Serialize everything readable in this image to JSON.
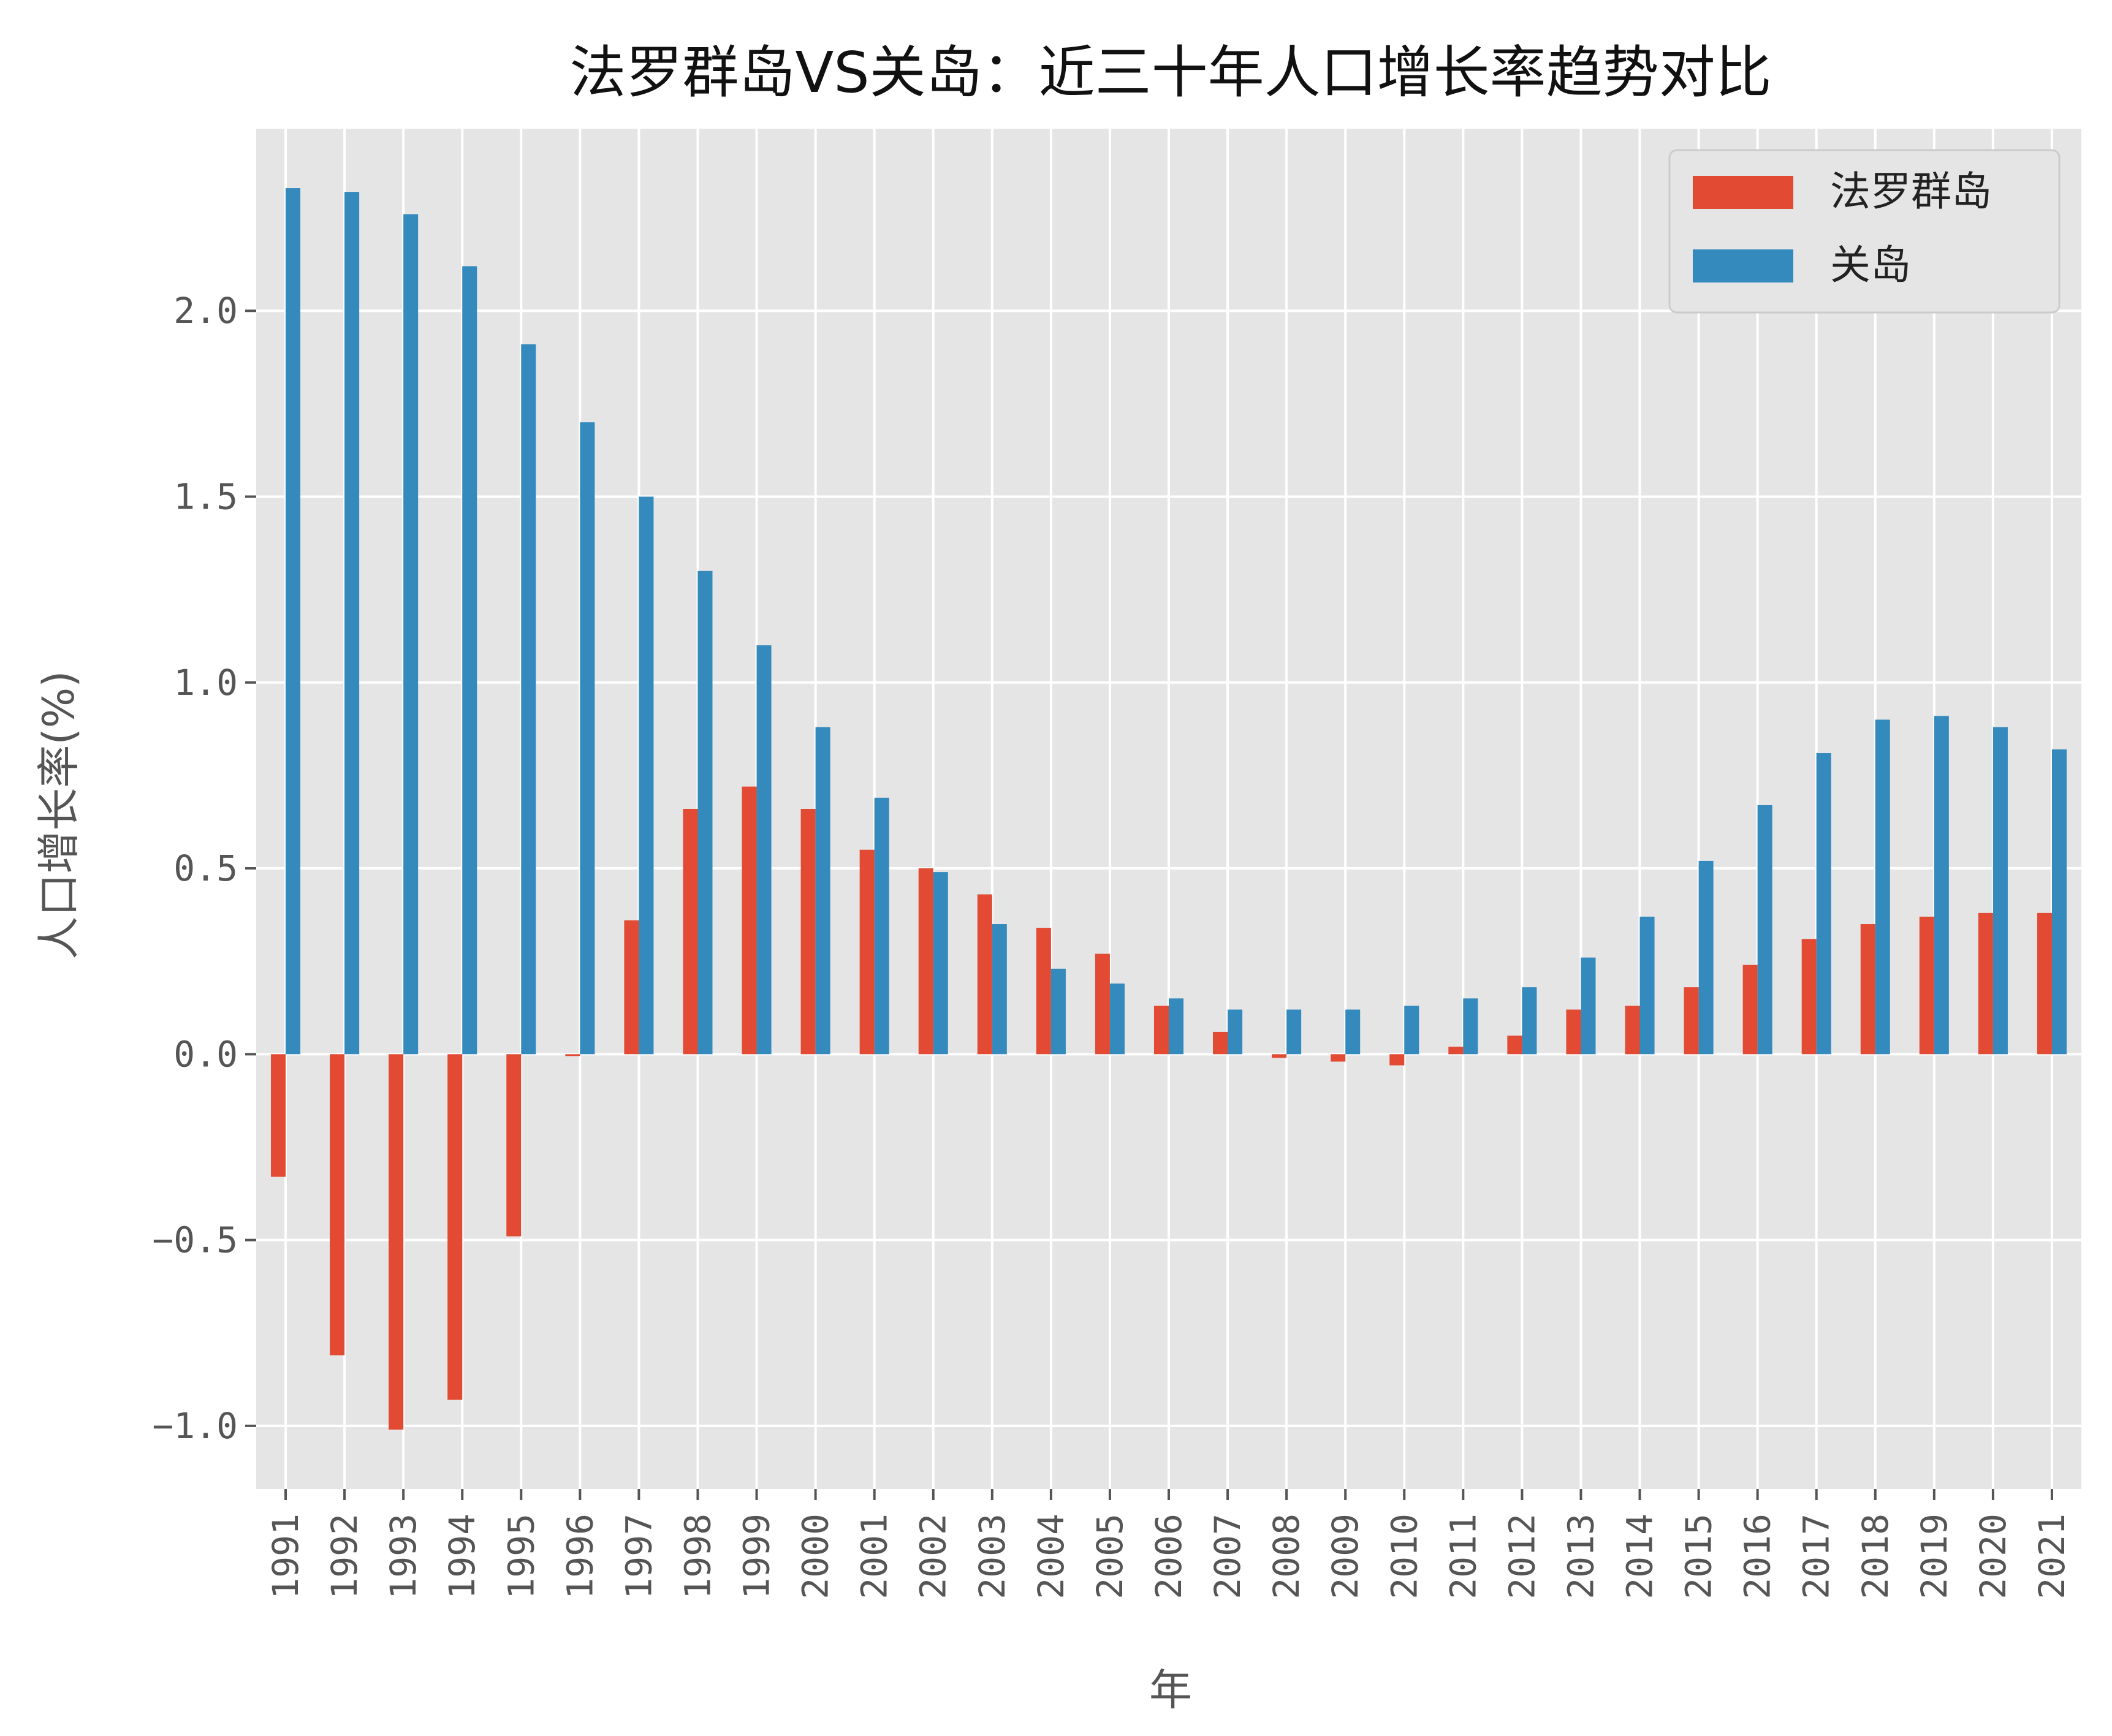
{
  "chart_data": {
    "type": "bar",
    "title": "法罗群岛VS关岛：近三十年人口增长率趋势对比",
    "xlabel": "年",
    "ylabel": "人口增长率(%)",
    "categories": [
      "1991",
      "1992",
      "1993",
      "1994",
      "1995",
      "1996",
      "1997",
      "1998",
      "1999",
      "2000",
      "2001",
      "2002",
      "2003",
      "2004",
      "2005",
      "2006",
      "2007",
      "2008",
      "2009",
      "2010",
      "2011",
      "2012",
      "2013",
      "2014",
      "2015",
      "2016",
      "2017",
      "2018",
      "2019",
      "2020",
      "2021"
    ],
    "series": [
      {
        "name": "法罗群岛",
        "color": "#E24A33",
        "values": [
          -0.33,
          -0.81,
          -1.01,
          -0.93,
          -0.49,
          -0.005,
          0.36,
          0.66,
          0.72,
          0.66,
          0.55,
          0.5,
          0.43,
          0.34,
          0.27,
          0.13,
          0.06,
          -0.01,
          -0.02,
          -0.03,
          0.02,
          0.05,
          0.12,
          0.13,
          0.18,
          0.24,
          0.31,
          0.35,
          0.37,
          0.38,
          0.38
        ]
      },
      {
        "name": "关岛",
        "color": "#348ABD",
        "values": [
          2.33,
          2.32,
          2.26,
          2.12,
          1.91,
          1.7,
          1.5,
          1.3,
          1.1,
          0.88,
          0.69,
          0.49,
          0.35,
          0.23,
          0.19,
          0.15,
          0.12,
          0.12,
          0.12,
          0.13,
          0.15,
          0.18,
          0.26,
          0.37,
          0.52,
          0.67,
          0.81,
          0.9,
          0.91,
          0.88,
          0.82
        ]
      }
    ],
    "yticks": [
      "−1.0",
      "−0.5",
      "0.0",
      "0.5",
      "1.0",
      "1.5",
      "2.0"
    ],
    "ytick_values": [
      -1.0,
      -0.5,
      0.0,
      0.5,
      1.0,
      1.5,
      2.0
    ],
    "ylim": [
      -1.17,
      2.49
    ],
    "grid": true,
    "legend_position": "top-right",
    "plot_background": "#E5E5E5",
    "grid_color": "#FFFFFF"
  }
}
